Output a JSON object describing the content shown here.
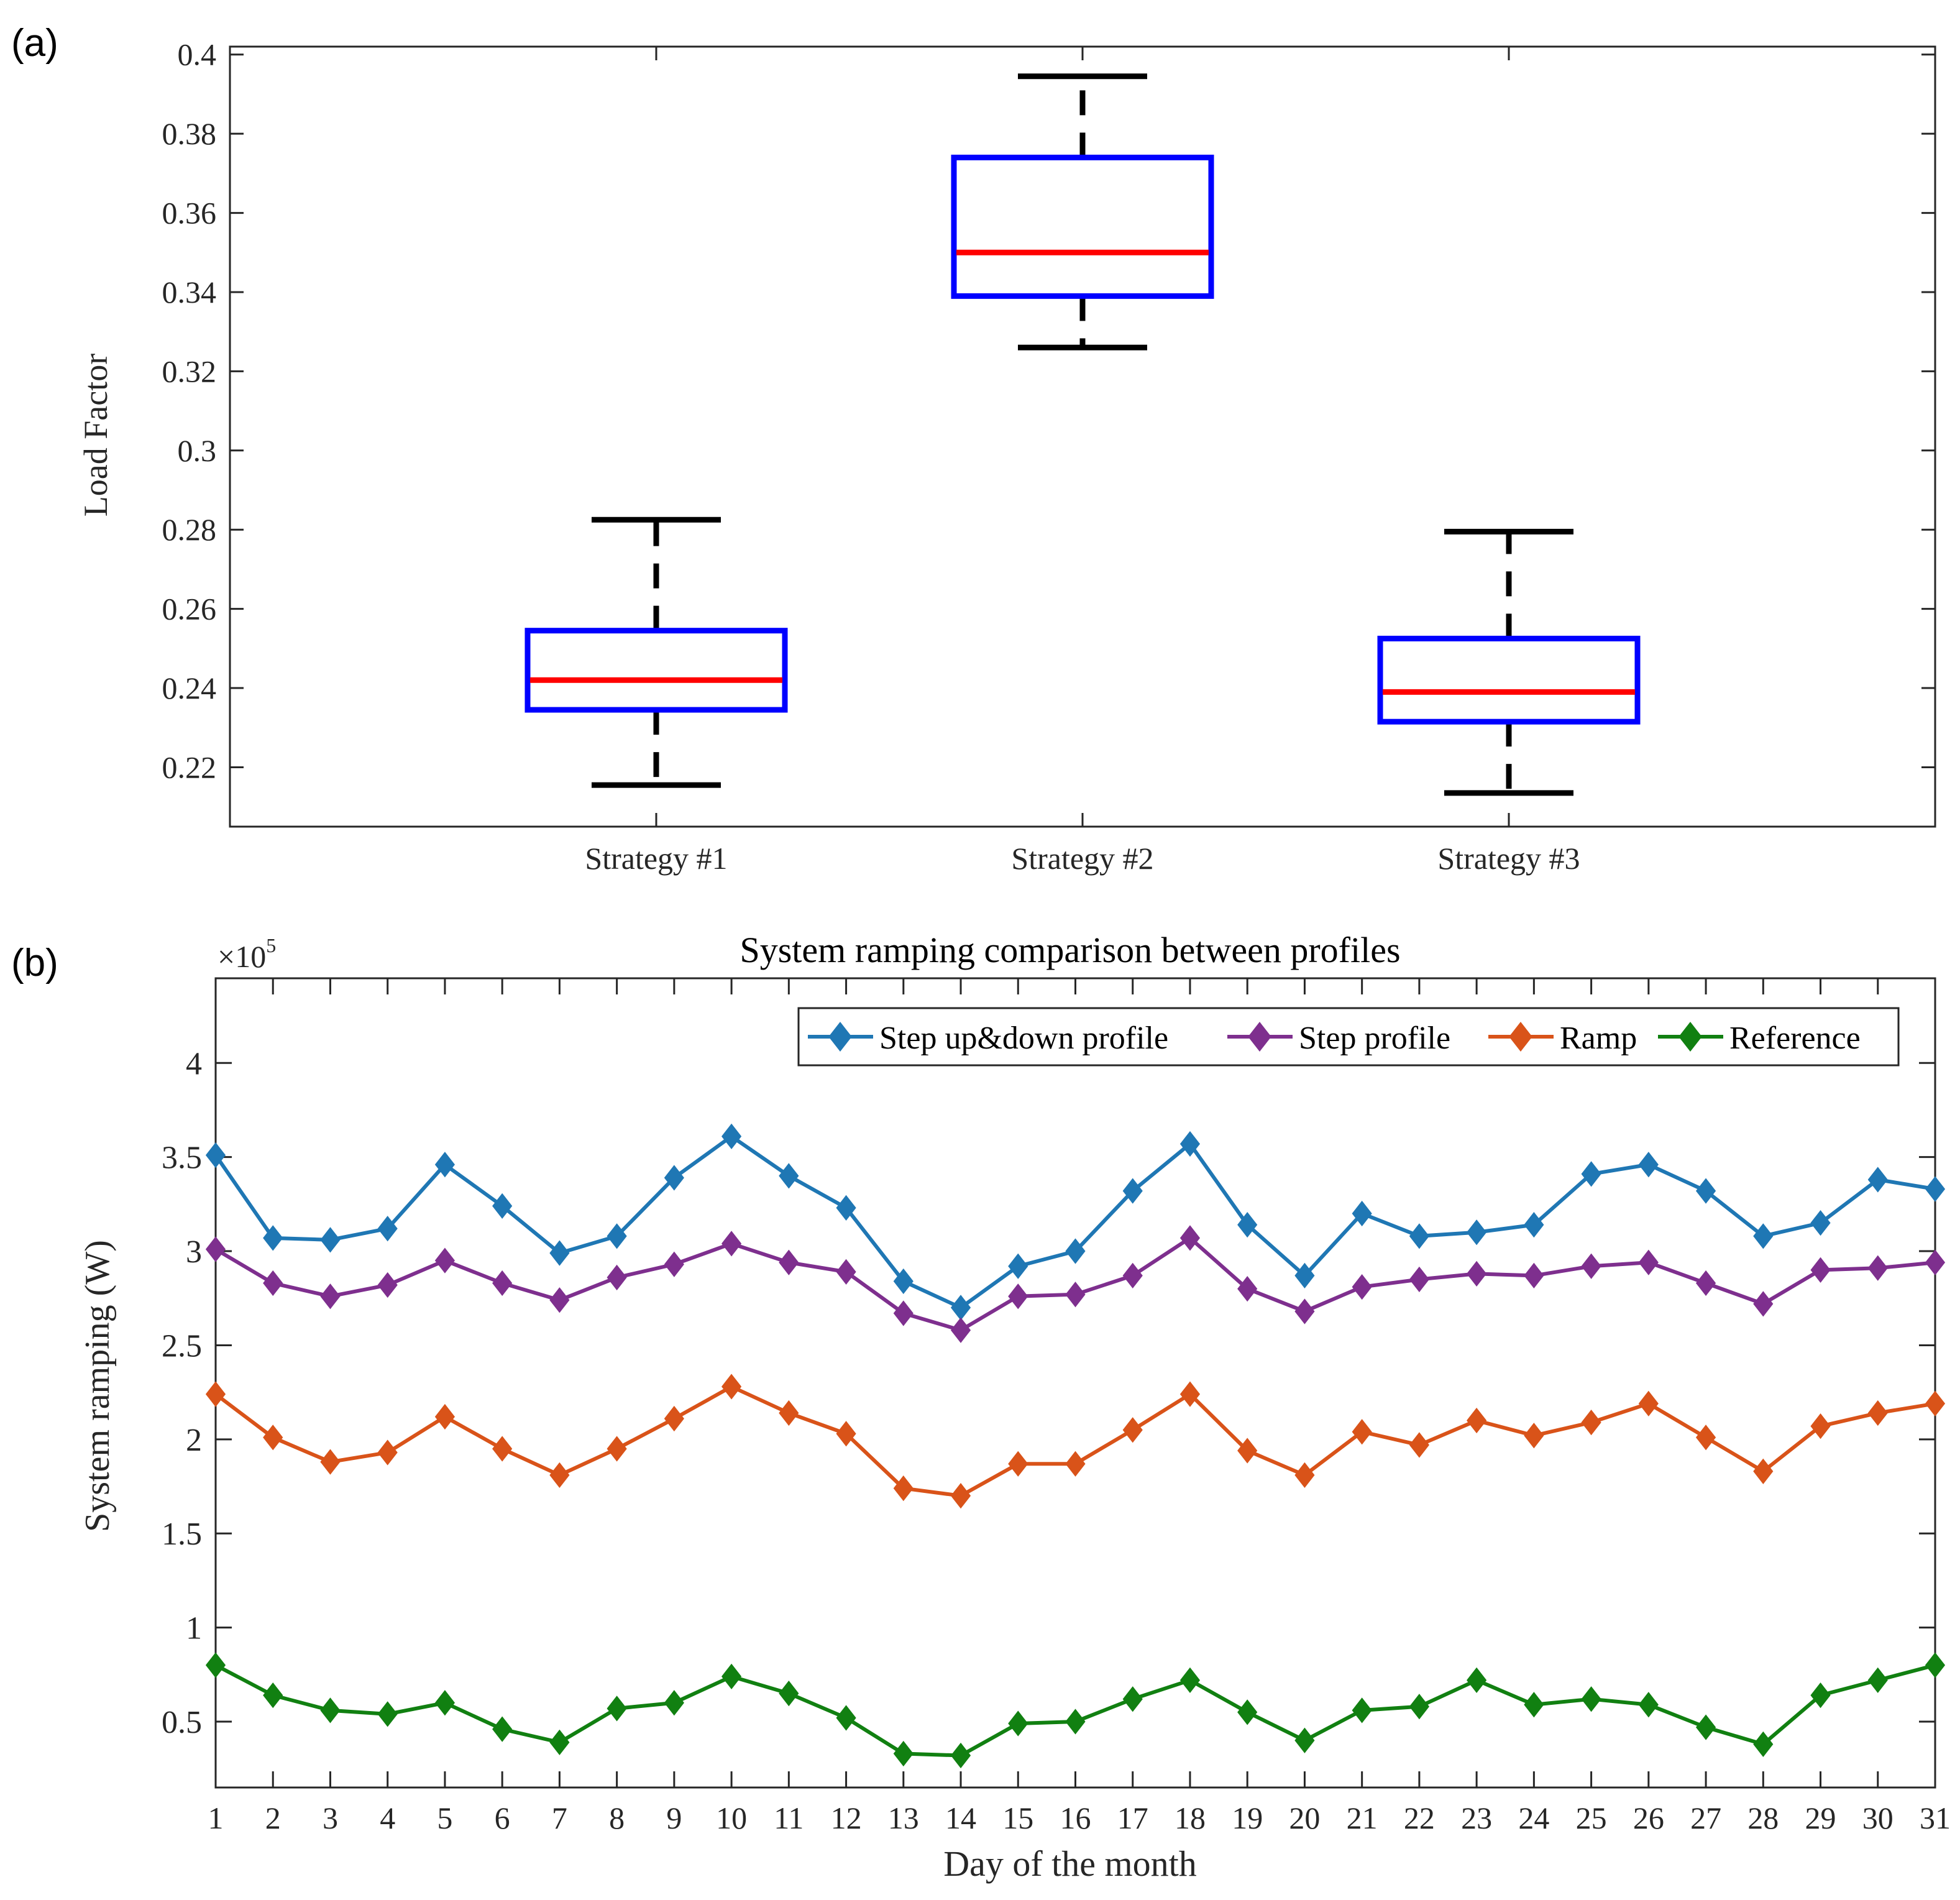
{
  "colors": {
    "box": "#0000ff",
    "median": "#ff0000",
    "whisker": "#000000",
    "axis": "#262626",
    "grid": "#262626"
  },
  "chart_data": [
    {
      "panel_label": "(a)",
      "type": "box",
      "title": "",
      "xlabel": "",
      "ylabel": "Load Factor",
      "ylim": [
        0.205,
        0.402
      ],
      "yticks": [
        0.22,
        0.24,
        0.26,
        0.28,
        0.3,
        0.32,
        0.34,
        0.36,
        0.38,
        0.4
      ],
      "ytick_labels": [
        "0.22",
        "0.24",
        "0.26",
        "0.28",
        "0.3",
        "0.32",
        "0.34",
        "0.36",
        "0.38",
        "0.4"
      ],
      "categories": [
        "Strategy #1",
        "Strategy #2",
        "Strategy #3"
      ],
      "boxes": [
        {
          "name": "Strategy #1",
          "whisker_low": 0.2155,
          "q1": 0.2345,
          "median": 0.242,
          "q3": 0.2545,
          "whisker_high": 0.2825
        },
        {
          "name": "Strategy #2",
          "whisker_low": 0.326,
          "q1": 0.339,
          "median": 0.35,
          "q3": 0.374,
          "whisker_high": 0.3945
        },
        {
          "name": "Strategy #3",
          "whisker_low": 0.2135,
          "q1": 0.2315,
          "median": 0.239,
          "q3": 0.2525,
          "whisker_high": 0.2795
        }
      ],
      "grid": false
    },
    {
      "panel_label": "(b)",
      "type": "line",
      "title": "System ramping comparison between profiles",
      "xlabel": "Day of the month",
      "ylabel": "System ramping (W)",
      "y_exponent_label": "×10",
      "y_exponent_power": "5",
      "xlim": [
        1,
        31
      ],
      "ylim": [
        0.15,
        4.45
      ],
      "x": [
        1,
        2,
        3,
        4,
        5,
        6,
        7,
        8,
        9,
        10,
        11,
        12,
        13,
        14,
        15,
        16,
        17,
        18,
        19,
        20,
        21,
        22,
        23,
        24,
        25,
        26,
        27,
        28,
        29,
        30,
        31
      ],
      "x_tick_labels": [
        "1",
        "2",
        "3",
        "4",
        "5",
        "6",
        "7",
        "8",
        "9",
        "10",
        "11",
        "12",
        "13",
        "14",
        "15",
        "16",
        "17",
        "18",
        "19",
        "20",
        "21",
        "22",
        "23",
        "24",
        "25",
        "26",
        "27",
        "28",
        "29",
        "30",
        "31"
      ],
      "yticks": [
        0.5,
        1,
        1.5,
        2,
        2.5,
        3,
        3.5,
        4
      ],
      "ytick_labels": [
        "0.5",
        "1",
        "1.5",
        "2",
        "2.5",
        "3",
        "3.5",
        "4"
      ],
      "legend_position": "top-right",
      "series": [
        {
          "name": "Step up&down profile",
          "color": "#1f77b4",
          "marker": "diamond",
          "values": [
            3.51,
            3.07,
            3.06,
            3.12,
            3.46,
            3.24,
            2.99,
            3.08,
            3.39,
            3.61,
            3.4,
            3.23,
            2.84,
            2.7,
            2.92,
            3.0,
            3.32,
            3.57,
            3.14,
            2.87,
            3.2,
            3.08,
            3.1,
            3.14,
            3.41,
            3.46,
            3.32,
            3.08,
            3.15,
            3.38,
            3.33
          ]
        },
        {
          "name": "Step profile",
          "color": "#7e2f8e",
          "marker": "diamond",
          "values": [
            3.01,
            2.83,
            2.76,
            2.82,
            2.95,
            2.83,
            2.74,
            2.86,
            2.93,
            3.04,
            2.94,
            2.89,
            2.67,
            2.58,
            2.76,
            2.77,
            2.87,
            3.07,
            2.8,
            2.68,
            2.81,
            2.85,
            2.88,
            2.87,
            2.92,
            2.94,
            2.83,
            2.72,
            2.9,
            2.91,
            2.94
          ]
        },
        {
          "name": "Ramp",
          "color": "#d95319",
          "marker": "diamond",
          "values": [
            2.24,
            2.01,
            1.88,
            1.93,
            2.12,
            1.95,
            1.81,
            1.95,
            2.11,
            2.28,
            2.14,
            2.03,
            1.74,
            1.7,
            1.87,
            1.87,
            2.05,
            2.24,
            1.94,
            1.81,
            2.04,
            1.97,
            2.1,
            2.02,
            2.09,
            2.19,
            2.01,
            1.83,
            2.07,
            2.14,
            2.19
          ]
        },
        {
          "name": "Reference",
          "color": "#118011",
          "marker": "diamond",
          "values": [
            0.8,
            0.64,
            0.56,
            0.54,
            0.6,
            0.46,
            0.39,
            0.57,
            0.6,
            0.74,
            0.65,
            0.52,
            0.33,
            0.32,
            0.49,
            0.5,
            0.62,
            0.72,
            0.55,
            0.4,
            0.56,
            0.58,
            0.72,
            0.59,
            0.62,
            0.59,
            0.47,
            0.38,
            0.64,
            0.72,
            0.8
          ]
        }
      ],
      "grid": false
    }
  ]
}
